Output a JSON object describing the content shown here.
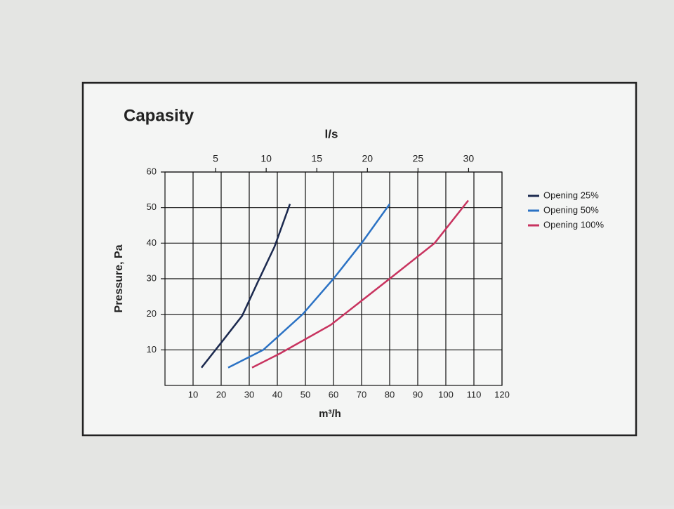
{
  "chart_data": {
    "type": "line",
    "title": "Capasity",
    "x2_label": "l/s",
    "y_label": "Pressure, Pa",
    "x_label": "m³/h",
    "xlim": [
      0,
      120
    ],
    "xticks": [
      10,
      20,
      30,
      40,
      50,
      60,
      70,
      80,
      90,
      100,
      110,
      120
    ],
    "x2lim": [
      0,
      33.3
    ],
    "x2ticks": [
      5,
      10,
      15,
      20,
      25,
      30
    ],
    "ylim": [
      0,
      60
    ],
    "yticks": [
      10,
      20,
      30,
      40,
      50,
      60
    ],
    "grid": true,
    "legend": "right",
    "series": [
      {
        "name": "Opening 25%",
        "color": "#1c2a4f",
        "x": [
          13,
          20,
          27.5,
          33,
          39,
          44.5
        ],
        "values": [
          5,
          12,
          19.6,
          29,
          39,
          51
        ]
      },
      {
        "name": "Opening 50%",
        "color": "#2b72c4",
        "x": [
          22.5,
          35,
          49,
          60,
          70,
          80
        ],
        "values": [
          5,
          10,
          20,
          30,
          40,
          51
        ]
      },
      {
        "name": "Opening 100%",
        "color": "#c8335f",
        "x": [
          31,
          41,
          59,
          80,
          96,
          108
        ],
        "values": [
          5,
          9,
          17,
          30,
          40,
          52
        ]
      }
    ]
  }
}
